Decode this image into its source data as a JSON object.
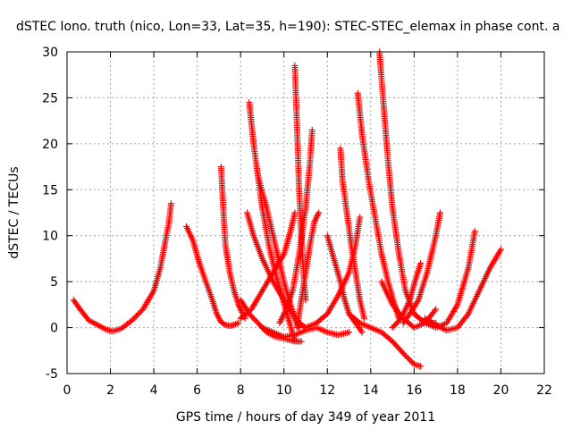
{
  "chart_data": {
    "type": "scatter",
    "title": "dSTEC Iono. truth (nico, Lon=33, Lat=35, h=190): STEC-STEC_elemax in phase cont. a",
    "xlabel": "GPS time / hours of day 349 of year 2011",
    "ylabel": "dSTEC  / TECUs",
    "xlim": [
      0,
      22
    ],
    "ylim": [
      -5,
      30
    ],
    "xticks": [
      "0",
      "2",
      "4",
      "6",
      "8",
      "10",
      "12",
      "14",
      "16",
      "18",
      "20",
      "22"
    ],
    "yticks": [
      "-5",
      "0",
      "5",
      "10",
      "15",
      "20",
      "25",
      "30"
    ],
    "grid": true,
    "marker": "plus",
    "color": "#ff0000",
    "series": [
      {
        "x": [
          0.3,
          0.6,
          1.0,
          1.4,
          1.8,
          2.1,
          2.5,
          3.0,
          3.5,
          4.0,
          4.3,
          4.5,
          4.7,
          4.8
        ],
        "y": [
          3.0,
          2.0,
          0.8,
          0.3,
          -0.2,
          -0.4,
          -0.1,
          0.8,
          2.0,
          4.0,
          6.5,
          9.0,
          11.5,
          13.5
        ]
      },
      {
        "x": [
          5.5,
          5.8,
          6.1,
          6.4,
          6.7,
          6.9,
          7.1,
          7.3,
          7.5,
          7.7,
          7.9
        ],
        "y": [
          11.0,
          9.5,
          7.0,
          5.0,
          3.0,
          1.5,
          0.6,
          0.3,
          0.2,
          0.3,
          0.5
        ]
      },
      {
        "x": [
          7.1,
          7.2,
          7.3,
          7.5,
          7.7,
          7.9,
          8.1,
          8.2
        ],
        "y": [
          17.5,
          13.0,
          9.0,
          6.0,
          4.0,
          2.5,
          1.5,
          1.0
        ]
      },
      {
        "x": [
          8.4,
          8.6,
          8.8,
          9.0,
          9.3,
          9.6,
          9.9,
          10.2,
          10.5
        ],
        "y": [
          24.5,
          20.0,
          16.5,
          13.0,
          9.0,
          6.0,
          3.5,
          1.0,
          -1.5
        ]
      },
      {
        "x": [
          8.3,
          8.6,
          9.0,
          9.5,
          10.0,
          10.4,
          10.7,
          11.0
        ],
        "y": [
          12.5,
          10.0,
          7.5,
          5.0,
          3.0,
          1.5,
          0.5,
          0.0
        ]
      },
      {
        "x": [
          8.8,
          9.2,
          9.6,
          10.0,
          10.3,
          10.5,
          10.7
        ],
        "y": [
          16.5,
          13.0,
          9.0,
          5.0,
          2.5,
          1.0,
          0.0
        ]
      },
      {
        "x": [
          8.0,
          8.4,
          8.8,
          9.2,
          9.6,
          10.0,
          10.5,
          10.8
        ],
        "y": [
          3.0,
          1.5,
          0.5,
          -0.5,
          -1.0,
          -1.2,
          -1.5,
          -1.5
        ]
      },
      {
        "x": [
          8.0,
          8.5,
          9.0,
          9.5,
          10.0,
          10.3,
          10.5
        ],
        "y": [
          1.0,
          2.0,
          4.0,
          6.0,
          8.0,
          10.5,
          12.5
        ]
      },
      {
        "x": [
          10.5,
          10.6,
          10.7,
          10.8,
          10.9,
          11.0
        ],
        "y": [
          28.5,
          22.0,
          15.0,
          10.0,
          6.0,
          3.0
        ]
      },
      {
        "x": [
          9.8,
          10.1,
          10.4,
          10.7,
          11.0,
          11.2,
          11.3
        ],
        "y": [
          0.5,
          2.0,
          4.0,
          8.0,
          13.0,
          18.0,
          21.5
        ]
      },
      {
        "x": [
          10.6,
          10.8,
          11.0,
          11.2,
          11.4,
          11.6
        ],
        "y": [
          0.0,
          3.0,
          6.0,
          9.0,
          11.5,
          12.5
        ]
      },
      {
        "x": [
          11.0,
          11.5,
          12.0,
          12.5,
          13.0,
          13.3,
          13.5
        ],
        "y": [
          0.0,
          0.5,
          1.5,
          3.5,
          6.0,
          9.0,
          12.0
        ]
      },
      {
        "x": [
          12.0,
          12.3,
          12.6,
          12.8,
          13.0,
          13.3,
          13.6
        ],
        "y": [
          10.0,
          7.5,
          5.0,
          3.0,
          1.5,
          0.5,
          -0.5
        ]
      },
      {
        "x": [
          12.6,
          12.7,
          12.9,
          13.1,
          13.3,
          13.5,
          13.7
        ],
        "y": [
          19.5,
          16.0,
          12.5,
          9.0,
          6.0,
          3.0,
          1.0
        ]
      },
      {
        "x": [
          13.4,
          13.6,
          13.9,
          14.2,
          14.5,
          14.8,
          15.1,
          15.3
        ],
        "y": [
          25.5,
          21.0,
          16.0,
          12.0,
          8.0,
          5.0,
          2.5,
          1.0
        ]
      },
      {
        "x": [
          14.4,
          14.6,
          14.8,
          15.0,
          15.3,
          15.6,
          16.0,
          16.5,
          17.0
        ],
        "y": [
          30.0,
          24.0,
          18.0,
          13.0,
          8.0,
          4.0,
          1.5,
          0.5,
          0.5
        ]
      },
      {
        "x": [
          13.0,
          13.5,
          14.0,
          14.5,
          15.0,
          15.5,
          16.0,
          16.3
        ],
        "y": [
          1.5,
          0.5,
          0.0,
          -0.5,
          -1.5,
          -2.8,
          -4.0,
          -4.2
        ]
      },
      {
        "x": [
          14.5,
          15.0,
          15.5,
          16.0,
          16.5,
          17.0
        ],
        "y": [
          5.0,
          2.5,
          1.0,
          0.0,
          0.5,
          2.0
        ]
      },
      {
        "x": [
          15.0,
          15.4,
          15.8,
          16.1,
          16.3
        ],
        "y": [
          0.0,
          1.0,
          3.0,
          5.5,
          7.0
        ]
      },
      {
        "x": [
          15.5,
          15.8,
          16.2,
          16.6,
          17.0,
          17.2
        ],
        "y": [
          0.5,
          1.5,
          3.0,
          6.0,
          10.0,
          12.5
        ]
      },
      {
        "x": [
          16.0,
          16.5,
          17.0,
          17.5,
          18.0,
          18.5,
          18.8
        ],
        "y": [
          1.5,
          0.5,
          0.0,
          0.5,
          2.5,
          6.5,
          10.5
        ]
      },
      {
        "x": [
          16.5,
          17.0,
          17.5,
          18.0,
          18.5,
          19.0,
          19.5,
          20.0
        ],
        "y": [
          1.0,
          0.3,
          -0.3,
          0.0,
          1.5,
          4.0,
          6.5,
          8.5
        ]
      },
      {
        "x": [
          9.0,
          9.5,
          10.0,
          10.5,
          11.0,
          11.5,
          12.0,
          12.5,
          13.0
        ],
        "y": [
          0.0,
          -0.5,
          -1.0,
          -0.8,
          -0.3,
          0.0,
          -0.5,
          -0.8,
          -0.5
        ]
      }
    ]
  }
}
